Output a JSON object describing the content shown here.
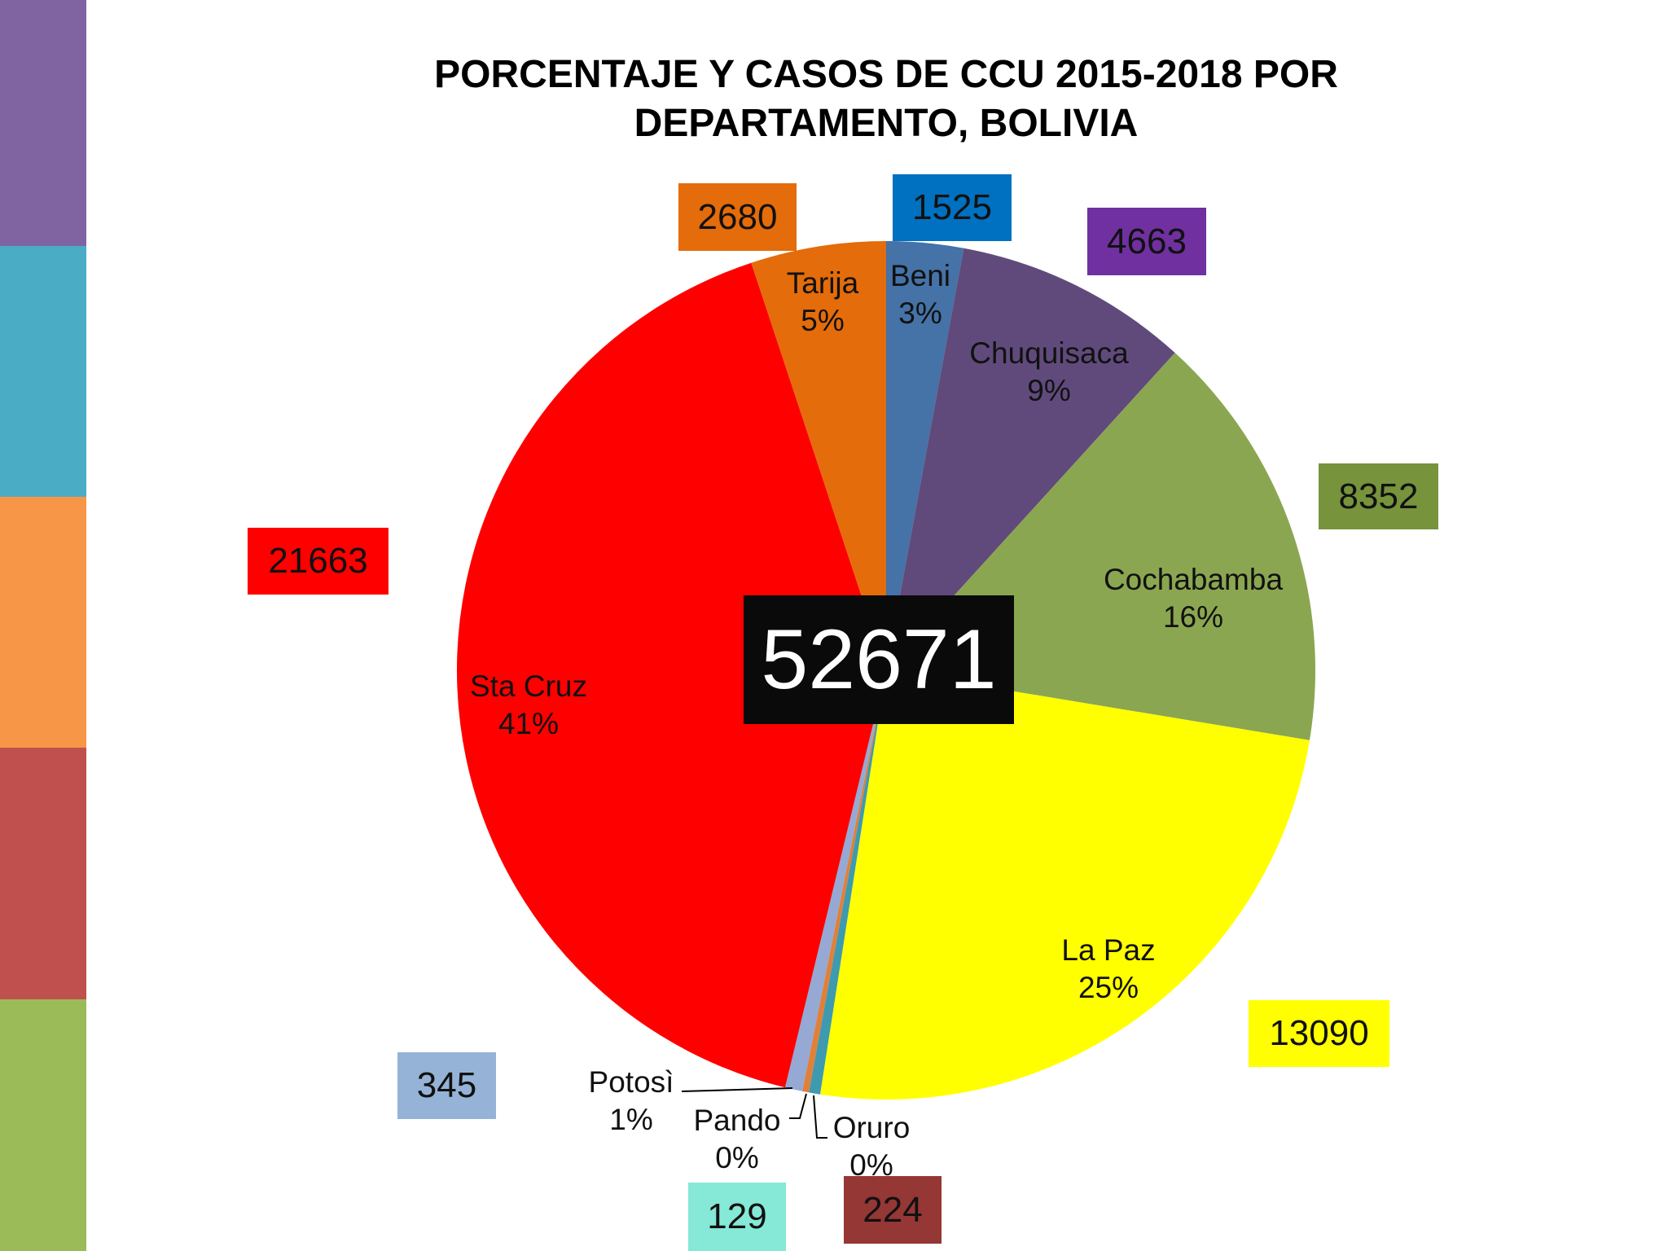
{
  "stripes": [
    "#8064A2",
    "#4BACC6",
    "#F79646",
    "#C0504D",
    "#9BBB59"
  ],
  "chart_data": {
    "type": "pie",
    "title": "PORCENTAJE  Y CASOS DE CCU 2015-2018 POR DEPARTAMENTO, BOLIVIA",
    "title_lines": [
      "PORCENTAJE  Y CASOS DE CCU 2015-2018 POR",
      "DEPARTAMENTO, BOLIVIA"
    ],
    "total": "52671",
    "start": "12 o'clock, clockwise",
    "slices": [
      {
        "name": "Beni",
        "value": 1525,
        "pct": "3%",
        "color": "#4572A7",
        "box_color": "#0070C0"
      },
      {
        "name": "Chuquisaca",
        "value": 4663,
        "pct": "9%",
        "color": "#604A7B",
        "box_color": "#7030A0"
      },
      {
        "name": "Cochabamba",
        "value": 8352,
        "pct": "16%",
        "color": "#8BA650",
        "box_color": "#77933C"
      },
      {
        "name": "La Paz",
        "value": 13090,
        "pct": "25%",
        "color": "#FFFF00",
        "box_color": "#FFFF00"
      },
      {
        "name": "Oruro",
        "value": 224,
        "pct": "0%",
        "color": "#3E9AAE",
        "box_color": "#953735"
      },
      {
        "name": "Pando",
        "value": 129,
        "pct": "0%",
        "color": "#E0803A",
        "box_color": "#86E8D6"
      },
      {
        "name": "Potosì",
        "value": 345,
        "pct": "1%",
        "color": "#95A9D4",
        "box_color": "#95B3D7"
      },
      {
        "name": "Sta Cruz",
        "value": 21663,
        "pct": "41%",
        "color": "#FF0000",
        "box_color": "#FF0000"
      },
      {
        "name": "Tarija",
        "value": 2680,
        "pct": "5%",
        "color": "#E46C0A",
        "box_color": "#E46C0A"
      }
    ]
  }
}
